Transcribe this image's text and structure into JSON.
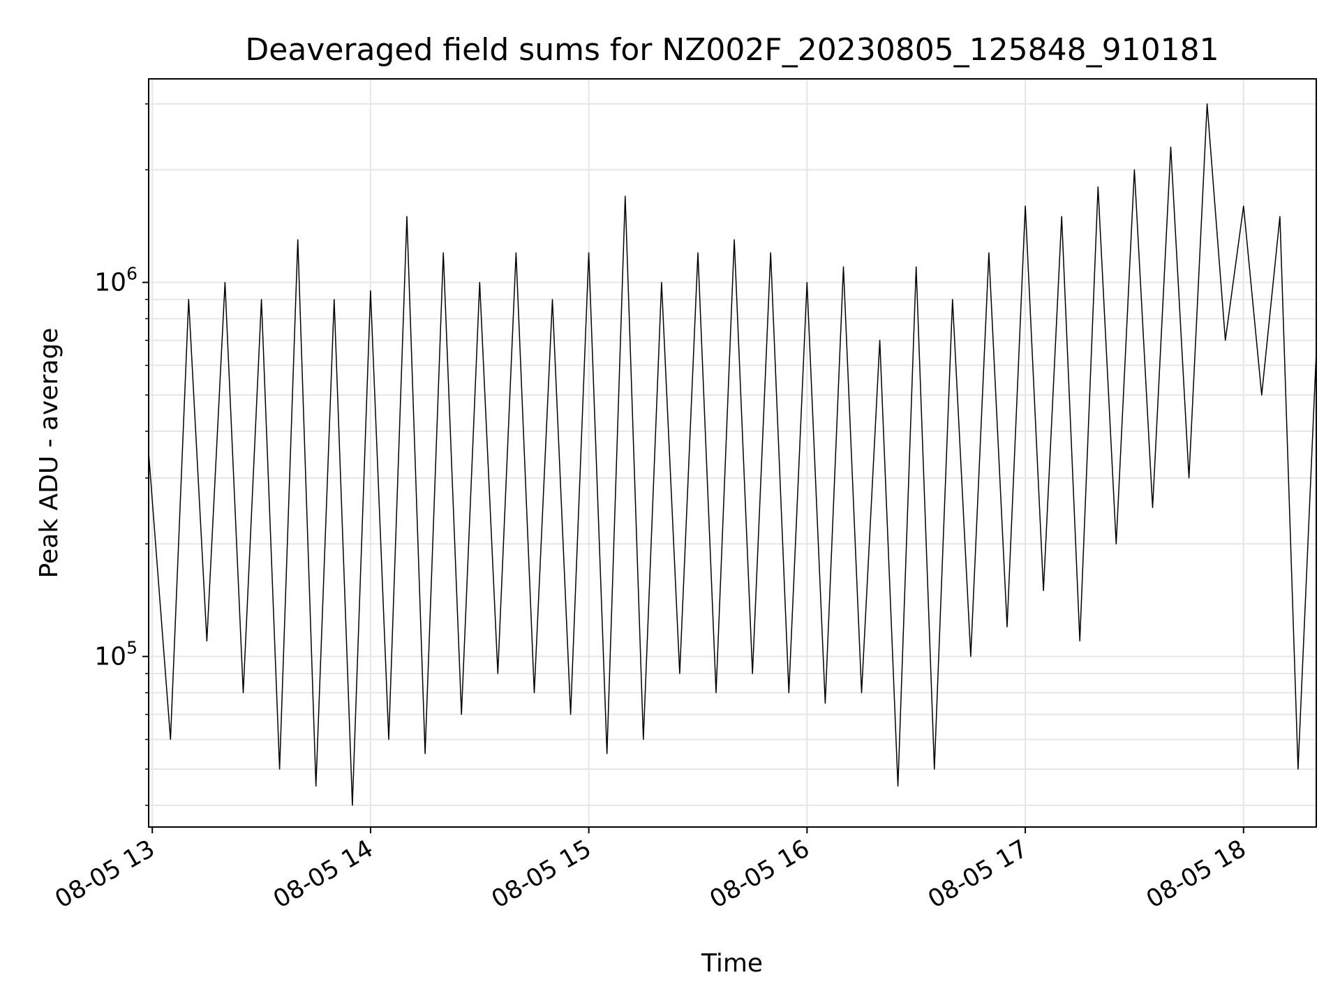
{
  "chart_data": {
    "type": "line",
    "title": "Deaveraged field sums for NZ002F_20230805_125848_910181",
    "xlabel": "Time",
    "ylabel": "Peak ADU - average",
    "x_tick_labels": [
      "08-05 13",
      "08-05 14",
      "08-05 15",
      "08-05 16",
      "08-05 17",
      "08-05 18"
    ],
    "y_tick_labels": [
      {
        "base": "10",
        "exp": "5",
        "value": 100000
      },
      {
        "base": "10",
        "exp": "6",
        "value": 1000000
      }
    ],
    "y_scale": "log",
    "xlim": [
      "2023-08-05 12:59:00",
      "2023-08-05 18:20:00"
    ],
    "ylim": [
      35000,
      3500000
    ],
    "grid": true,
    "line_color": "#000000",
    "series": [
      {
        "x": [
          "2023-08-05 12:59",
          "2023-08-05 13:05",
          "2023-08-05 13:10",
          "2023-08-05 13:15",
          "2023-08-05 13:20",
          "2023-08-05 13:25",
          "2023-08-05 13:30",
          "2023-08-05 13:35",
          "2023-08-05 13:40",
          "2023-08-05 13:45",
          "2023-08-05 13:50",
          "2023-08-05 13:55",
          "2023-08-05 14:00",
          "2023-08-05 14:05",
          "2023-08-05 14:10",
          "2023-08-05 14:15",
          "2023-08-05 14:20",
          "2023-08-05 14:25",
          "2023-08-05 14:30",
          "2023-08-05 14:35",
          "2023-08-05 14:40",
          "2023-08-05 14:45",
          "2023-08-05 14:50",
          "2023-08-05 14:55",
          "2023-08-05 15:00",
          "2023-08-05 15:05",
          "2023-08-05 15:10",
          "2023-08-05 15:15",
          "2023-08-05 15:20",
          "2023-08-05 15:25",
          "2023-08-05 15:30",
          "2023-08-05 15:35",
          "2023-08-05 15:40",
          "2023-08-05 15:45",
          "2023-08-05 15:50",
          "2023-08-05 15:55",
          "2023-08-05 16:00",
          "2023-08-05 16:05",
          "2023-08-05 16:10",
          "2023-08-05 16:15",
          "2023-08-05 16:20",
          "2023-08-05 16:25",
          "2023-08-05 16:30",
          "2023-08-05 16:35",
          "2023-08-05 16:40",
          "2023-08-05 16:45",
          "2023-08-05 16:50",
          "2023-08-05 16:55",
          "2023-08-05 17:00",
          "2023-08-05 17:05",
          "2023-08-05 17:10",
          "2023-08-05 17:15",
          "2023-08-05 17:20",
          "2023-08-05 17:25",
          "2023-08-05 17:30",
          "2023-08-05 17:35",
          "2023-08-05 17:40",
          "2023-08-05 17:45",
          "2023-08-05 17:50",
          "2023-08-05 17:55",
          "2023-08-05 18:00",
          "2023-08-05 18:05",
          "2023-08-05 18:10",
          "2023-08-05 18:15",
          "2023-08-05 18:20"
        ],
        "values": [
          350000,
          60000,
          900000,
          110000,
          1000000,
          80000,
          900000,
          50000,
          1300000,
          45000,
          900000,
          40000,
          950000,
          60000,
          1500000,
          55000,
          1200000,
          70000,
          1000000,
          90000,
          1200000,
          80000,
          900000,
          70000,
          1200000,
          55000,
          1700000,
          60000,
          1000000,
          90000,
          1200000,
          80000,
          1300000,
          90000,
          1200000,
          80000,
          1000000,
          75000,
          1100000,
          80000,
          700000,
          45000,
          1100000,
          50000,
          900000,
          100000,
          1200000,
          120000,
          1600000,
          150000,
          1500000,
          110000,
          1800000,
          200000,
          2000000,
          250000,
          2300000,
          300000,
          3000000,
          700000,
          1600000,
          500000,
          1500000,
          50000,
          650000
        ]
      }
    ]
  }
}
